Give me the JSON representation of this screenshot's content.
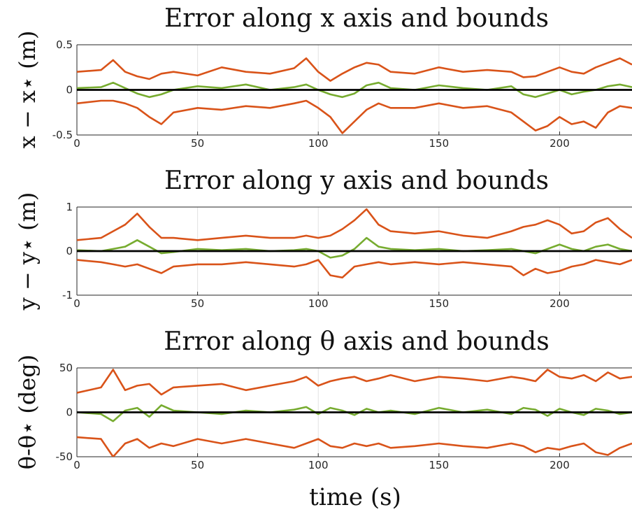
{
  "colors": {
    "bound": "#d95319",
    "error": "#77ac30",
    "zero": "#000000",
    "grid": "#e2e2e2",
    "axis": "#262626"
  },
  "xlabel": "time (s)",
  "chart_data": [
    {
      "type": "line",
      "title": "Error along x axis and bounds",
      "ylabel": "x − x⋆ (m)",
      "xlim": [
        0,
        230
      ],
      "ylim": [
        -0.5,
        0.5
      ],
      "xticks": [
        0,
        50,
        100,
        150,
        200
      ],
      "yticks": [
        -0.5,
        0,
        0.5
      ],
      "xtick_labels": [
        "0",
        "50",
        "100",
        "150",
        "200"
      ],
      "ytick_labels": [
        "-0.5",
        "0",
        "0.5"
      ],
      "grid": true,
      "x": [
        0,
        10,
        15,
        20,
        25,
        30,
        35,
        40,
        50,
        60,
        70,
        80,
        90,
        95,
        100,
        105,
        110,
        115,
        120,
        125,
        130,
        140,
        150,
        160,
        170,
        180,
        185,
        190,
        195,
        200,
        205,
        210,
        215,
        220,
        225,
        230
      ],
      "series": [
        {
          "values": [
            0.2,
            0.22,
            0.33,
            0.2,
            0.15,
            0.12,
            0.18,
            0.2,
            0.16,
            0.25,
            0.2,
            0.18,
            0.24,
            0.35,
            0.2,
            0.1,
            0.18,
            0.25,
            0.3,
            0.28,
            0.2,
            0.18,
            0.25,
            0.2,
            0.22,
            0.2,
            0.14,
            0.15,
            0.2,
            0.25,
            0.2,
            0.18,
            0.25,
            0.3,
            0.35,
            0.28
          ]
        },
        {
          "values": [
            -0.15,
            -0.12,
            -0.12,
            -0.15,
            -0.2,
            -0.3,
            -0.38,
            -0.25,
            -0.2,
            -0.22,
            -0.18,
            -0.2,
            -0.15,
            -0.12,
            -0.2,
            -0.3,
            -0.48,
            -0.35,
            -0.22,
            -0.15,
            -0.2,
            -0.2,
            -0.15,
            -0.2,
            -0.18,
            -0.25,
            -0.35,
            -0.45,
            -0.4,
            -0.3,
            -0.38,
            -0.35,
            -0.42,
            -0.25,
            -0.18,
            -0.2
          ]
        },
        {
          "values": [
            0.02,
            0.03,
            0.08,
            0.02,
            -0.04,
            -0.08,
            -0.05,
            0.0,
            0.04,
            0.02,
            0.06,
            0.0,
            0.03,
            0.06,
            0.0,
            -0.05,
            -0.08,
            -0.04,
            0.05,
            0.08,
            0.02,
            0.0,
            0.05,
            0.02,
            0.0,
            0.04,
            -0.05,
            -0.08,
            -0.04,
            0.0,
            -0.05,
            -0.02,
            0.0,
            0.04,
            0.06,
            0.03
          ]
        },
        {
          "values": [
            0,
            0,
            0,
            0,
            0,
            0,
            0,
            0,
            0,
            0,
            0,
            0,
            0,
            0,
            0,
            0,
            0,
            0,
            0,
            0,
            0,
            0,
            0,
            0,
            0,
            0,
            0,
            0,
            0,
            0,
            0,
            0,
            0,
            0,
            0,
            0
          ]
        }
      ]
    },
    {
      "type": "line",
      "title": "Error along y axis and bounds",
      "ylabel": "y − y⋆ (m)",
      "xlim": [
        0,
        230
      ],
      "ylim": [
        -1,
        1
      ],
      "xticks": [
        0,
        50,
        100,
        150,
        200
      ],
      "yticks": [
        -1,
        0,
        1
      ],
      "xtick_labels": [
        "0",
        "50",
        "100",
        "150",
        "200"
      ],
      "ytick_labels": [
        "-1",
        "0",
        "1"
      ],
      "grid": true,
      "x": [
        0,
        10,
        15,
        20,
        25,
        30,
        35,
        40,
        50,
        60,
        70,
        80,
        90,
        95,
        100,
        105,
        110,
        115,
        120,
        125,
        130,
        140,
        150,
        160,
        170,
        180,
        185,
        190,
        195,
        200,
        205,
        210,
        215,
        220,
        225,
        230
      ],
      "series": [
        {
          "values": [
            0.25,
            0.3,
            0.45,
            0.6,
            0.85,
            0.55,
            0.3,
            0.3,
            0.25,
            0.3,
            0.35,
            0.3,
            0.3,
            0.35,
            0.3,
            0.35,
            0.5,
            0.7,
            0.95,
            0.6,
            0.45,
            0.4,
            0.45,
            0.35,
            0.3,
            0.45,
            0.55,
            0.6,
            0.7,
            0.6,
            0.4,
            0.45,
            0.65,
            0.75,
            0.5,
            0.3
          ]
        },
        {
          "values": [
            -0.2,
            -0.25,
            -0.3,
            -0.35,
            -0.3,
            -0.4,
            -0.5,
            -0.35,
            -0.3,
            -0.3,
            -0.25,
            -0.3,
            -0.35,
            -0.3,
            -0.2,
            -0.55,
            -0.6,
            -0.35,
            -0.3,
            -0.25,
            -0.3,
            -0.25,
            -0.3,
            -0.25,
            -0.3,
            -0.35,
            -0.55,
            -0.4,
            -0.5,
            -0.45,
            -0.35,
            -0.3,
            -0.2,
            -0.25,
            -0.3,
            -0.2
          ]
        },
        {
          "values": [
            0.02,
            0.0,
            0.05,
            0.1,
            0.25,
            0.1,
            -0.05,
            -0.02,
            0.05,
            0.02,
            0.05,
            0.0,
            0.02,
            0.05,
            0.0,
            -0.15,
            -0.1,
            0.05,
            0.3,
            0.1,
            0.05,
            0.02,
            0.05,
            0.0,
            0.02,
            0.05,
            0.0,
            -0.05,
            0.05,
            0.15,
            0.05,
            0.0,
            0.1,
            0.15,
            0.05,
            0.0
          ]
        },
        {
          "values": [
            0,
            0,
            0,
            0,
            0,
            0,
            0,
            0,
            0,
            0,
            0,
            0,
            0,
            0,
            0,
            0,
            0,
            0,
            0,
            0,
            0,
            0,
            0,
            0,
            0,
            0,
            0,
            0,
            0,
            0,
            0,
            0,
            0,
            0,
            0,
            0
          ]
        }
      ]
    },
    {
      "type": "line",
      "title": "Error along θ axis and bounds",
      "ylabel": "θ-θ⋆ (deg)",
      "xlim": [
        0,
        230
      ],
      "ylim": [
        -50,
        50
      ],
      "xticks": [
        0,
        50,
        100,
        150,
        200
      ],
      "yticks": [
        -50,
        0,
        50
      ],
      "xtick_labels": [
        "0",
        "50",
        "100",
        "150",
        "200"
      ],
      "ytick_labels": [
        "-50",
        "0",
        "50"
      ],
      "grid": true,
      "x": [
        0,
        10,
        15,
        20,
        25,
        30,
        35,
        40,
        50,
        60,
        70,
        80,
        90,
        95,
        100,
        105,
        110,
        115,
        120,
        125,
        130,
        140,
        150,
        160,
        170,
        180,
        185,
        190,
        195,
        200,
        205,
        210,
        215,
        220,
        225,
        230
      ],
      "series": [
        {
          "values": [
            22,
            28,
            48,
            25,
            30,
            32,
            20,
            28,
            30,
            32,
            25,
            30,
            35,
            40,
            30,
            35,
            38,
            40,
            35,
            38,
            42,
            35,
            40,
            38,
            35,
            40,
            38,
            35,
            48,
            40,
            38,
            42,
            35,
            45,
            38,
            40
          ]
        },
        {
          "values": [
            -28,
            -30,
            -50,
            -35,
            -30,
            -40,
            -35,
            -38,
            -30,
            -35,
            -30,
            -35,
            -40,
            -35,
            -30,
            -38,
            -40,
            -35,
            -38,
            -35,
            -40,
            -38,
            -35,
            -38,
            -40,
            -35,
            -38,
            -45,
            -40,
            -42,
            -38,
            -35,
            -45,
            -48,
            -40,
            -35
          ]
        },
        {
          "values": [
            0,
            -2,
            -10,
            2,
            5,
            -5,
            8,
            2,
            0,
            -2,
            2,
            0,
            3,
            6,
            -2,
            5,
            2,
            -3,
            4,
            0,
            2,
            -2,
            5,
            0,
            3,
            -2,
            5,
            3,
            -4,
            4,
            0,
            -3,
            4,
            2,
            -2,
            0
          ]
        },
        {
          "values": [
            0,
            0,
            0,
            0,
            0,
            0,
            0,
            0,
            0,
            0,
            0,
            0,
            0,
            0,
            0,
            0,
            0,
            0,
            0,
            0,
            0,
            0,
            0,
            0,
            0,
            0,
            0,
            0,
            0,
            0,
            0,
            0,
            0,
            0,
            0,
            0
          ]
        }
      ]
    }
  ]
}
